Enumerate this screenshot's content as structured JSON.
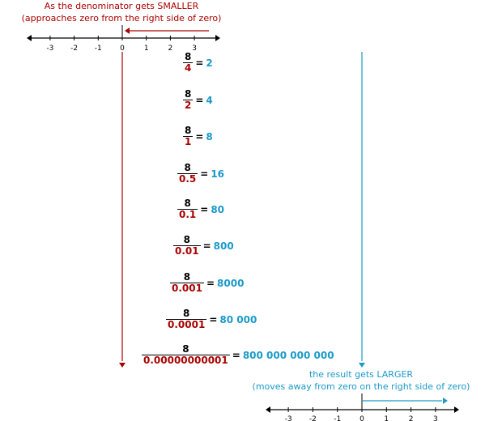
{
  "top_caption": {
    "line1": "As the denominator gets SMALLER",
    "line2": "(approaches zero from the right side of zero)"
  },
  "bottom_caption": {
    "line1": "the result gets LARGER",
    "line2": "(moves away from zero on the right side of zero)"
  },
  "number_line_ticks": [
    "-3",
    "-2",
    "-1",
    "0",
    "1",
    "2",
    "3"
  ],
  "equation_symbol": "=",
  "rows": [
    {
      "numerator": "8",
      "denominator": "4",
      "result": "2"
    },
    {
      "numerator": "8",
      "denominator": "2",
      "result": "4"
    },
    {
      "numerator": "8",
      "denominator": "1",
      "result": "8"
    },
    {
      "numerator": "8",
      "denominator": "0.5",
      "result": "16"
    },
    {
      "numerator": "8",
      "denominator": "0.1",
      "result": "80"
    },
    {
      "numerator": "8",
      "denominator": "0.01",
      "result": "800"
    },
    {
      "numerator": "8",
      "denominator": "0.001",
      "result": "8000"
    },
    {
      "numerator": "8",
      "denominator": "0.0001",
      "result": "80 000"
    },
    {
      "numerator": "8",
      "denominator": "0.00000000001",
      "result": "800 000 000 000"
    }
  ],
  "colors": {
    "denominator": "#aa0000",
    "result": "#1a9ac8",
    "axis": "#000000"
  }
}
